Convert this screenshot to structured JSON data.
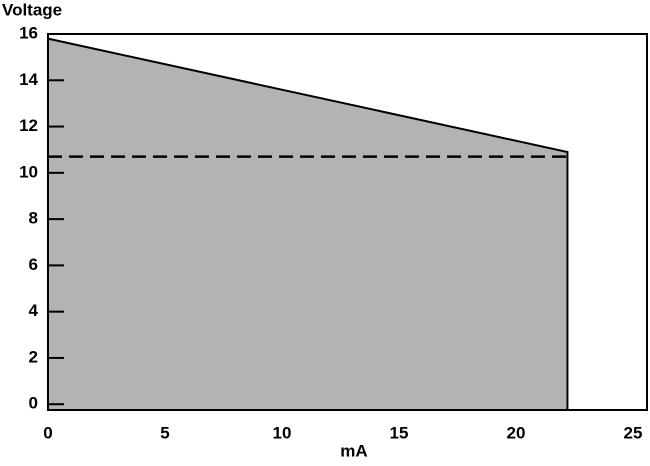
{
  "chart_data": {
    "type": "area",
    "y_label": "Voltage",
    "x_label": "mA",
    "x": [
      0,
      22.2
    ],
    "series": [
      {
        "color": "#b3b3b3",
        "values": [
          15.8,
          10.9
        ]
      },
      {
        "color": "#000000",
        "line_style": "dashed",
        "values": [
          10.7,
          10.7
        ]
      }
    ],
    "xlim": [
      0,
      25.6
    ],
    "ylim": [
      -0.25,
      16
    ],
    "xticks": [
      0,
      5,
      10,
      15,
      20,
      25
    ],
    "yticks": [
      0,
      2,
      4,
      6,
      8,
      10,
      12,
      14,
      16
    ],
    "grid": false
  }
}
